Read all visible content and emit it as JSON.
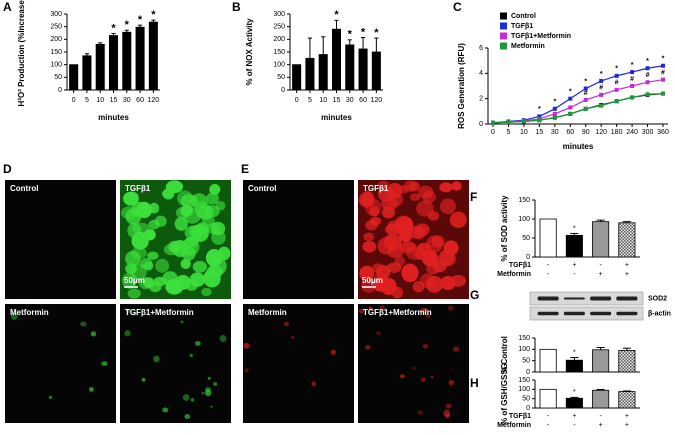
{
  "chart_data": [
    {
      "panel": "A",
      "type": "bar",
      "ylabel": "H²O² Production (%Increase)",
      "xlabel": "minutes",
      "categories": [
        "0",
        "5",
        "10",
        "15",
        "30",
        "60",
        "120"
      ],
      "values": [
        100,
        135,
        180,
        215,
        228,
        248,
        268
      ],
      "errors": [
        0,
        8,
        6,
        8,
        8,
        8,
        8
      ],
      "annotations": [
        null,
        null,
        null,
        "*",
        "*",
        "*",
        "*"
      ],
      "color": "#000000",
      "ylim": [
        0,
        300
      ],
      "yticks": [
        0,
        50,
        100,
        150,
        200,
        250,
        300
      ]
    },
    {
      "panel": "B",
      "type": "bar",
      "ylabel": "% of NOX Activity",
      "xlabel": "minutes",
      "categories": [
        "0",
        "5",
        "10",
        "15",
        "30",
        "60",
        "120"
      ],
      "values": [
        100,
        125,
        140,
        240,
        178,
        162,
        150
      ],
      "errors": [
        0,
        80,
        70,
        35,
        20,
        45,
        55
      ],
      "annotations": [
        null,
        null,
        null,
        "*",
        "*",
        "*",
        "*"
      ],
      "color": "#000000",
      "ylim": [
        0,
        300
      ],
      "yticks": [
        0,
        50,
        100,
        150,
        200,
        250,
        300
      ]
    },
    {
      "panel": "C",
      "type": "line",
      "ylabel": "ROS Generation (RFU)",
      "xlabel": "minutes",
      "categories": [
        "0",
        "5",
        "10",
        "15",
        "30",
        "60",
        "90",
        "120",
        "180",
        "240",
        "300",
        "360"
      ],
      "series": [
        {
          "name": "Control",
          "color": "#000000",
          "values": [
            0.1,
            0.15,
            0.2,
            0.3,
            0.5,
            0.8,
            1.2,
            1.5,
            1.8,
            2.1,
            2.3,
            2.4
          ]
        },
        {
          "name": "TGFβ1",
          "color": "#1c2bd6",
          "values": [
            0.1,
            0.2,
            0.3,
            0.6,
            1.2,
            2.0,
            2.8,
            3.4,
            3.8,
            4.1,
            4.4,
            4.6
          ],
          "annotations": [
            null,
            null,
            null,
            "*",
            "*",
            "*",
            "*",
            "*",
            "*",
            "*",
            "*",
            "*"
          ]
        },
        {
          "name": "TGFβ1+Metformin",
          "color": "#c42bd6",
          "values": [
            0.1,
            0.15,
            0.25,
            0.4,
            0.8,
            1.3,
            1.9,
            2.3,
            2.7,
            3.0,
            3.3,
            3.5
          ],
          "annotations": [
            null,
            null,
            null,
            null,
            null,
            null,
            "#",
            "#",
            "#",
            "#",
            "#",
            "#"
          ]
        },
        {
          "name": "Metformin",
          "color": "#1e9a3c",
          "values": [
            0.1,
            0.15,
            0.2,
            0.3,
            0.5,
            0.8,
            1.2,
            1.45,
            1.8,
            2.1,
            2.35,
            2.4
          ]
        }
      ],
      "ylim": [
        0,
        6
      ],
      "yticks": [
        0,
        2,
        4,
        6
      ]
    },
    {
      "panel": "F",
      "type": "bar",
      "ylabel": "% of SOD activity",
      "values": [
        100,
        57,
        93,
        90
      ],
      "errors": [
        0,
        5,
        4,
        3
      ],
      "annotations": [
        null,
        "*",
        null,
        null
      ],
      "colors": [
        "#ffffff",
        "#000000",
        "#999999",
        "#cccccc"
      ],
      "patterned": [
        false,
        false,
        false,
        true
      ],
      "treatments": [
        {
          "name": "TGFβ1",
          "signs": [
            "-",
            "+",
            "-",
            "+"
          ]
        },
        {
          "name": "Metformin",
          "signs": [
            "-",
            "-",
            "+",
            "+"
          ]
        }
      ],
      "ylim": [
        0,
        150
      ],
      "yticks": [
        0,
        50,
        100,
        150
      ]
    },
    {
      "panel": "G",
      "type": "bar",
      "ylabel": "% Control",
      "blot_labels": [
        "SOD2",
        "β-actin"
      ],
      "values": [
        100,
        52,
        98,
        95
      ],
      "errors": [
        0,
        12,
        10,
        10
      ],
      "annotations": [
        null,
        "*",
        null,
        null
      ],
      "colors": [
        "#ffffff",
        "#000000",
        "#999999",
        "#cccccc"
      ],
      "patterned": [
        false,
        false,
        false,
        true
      ],
      "ylim": [
        0,
        150
      ],
      "yticks": [
        0,
        50,
        100,
        150
      ]
    },
    {
      "panel": "H",
      "type": "bar",
      "ylabel": "% of GSH/GSSG",
      "values": [
        100,
        52,
        95,
        88
      ],
      "errors": [
        0,
        5,
        4,
        3
      ],
      "annotations": [
        null,
        "*",
        null,
        null
      ],
      "colors": [
        "#ffffff",
        "#000000",
        "#999999",
        "#cccccc"
      ],
      "patterned": [
        false,
        false,
        false,
        true
      ],
      "treatments": [
        {
          "name": "TGFβ1",
          "signs": [
            "-",
            "+",
            "-",
            "+"
          ]
        },
        {
          "name": "Metformin",
          "signs": [
            "-",
            "-",
            "+",
            "+"
          ]
        }
      ],
      "ylim": [
        0,
        150
      ],
      "yticks": [
        0,
        50,
        100,
        150
      ]
    }
  ],
  "micrographs": [
    {
      "panel": "D",
      "labels": [
        "Control",
        "TGFβ1",
        "Metformin",
        "TGFβ1+Metformin"
      ],
      "scale_bar": "50μm",
      "color": "#3ce03c"
    },
    {
      "panel": "E",
      "labels": [
        "Control",
        "TGFβ1",
        "Metformin",
        "TGFβ1+Metformin"
      ],
      "scale_bar": "50μm",
      "color": "#e02020"
    }
  ]
}
